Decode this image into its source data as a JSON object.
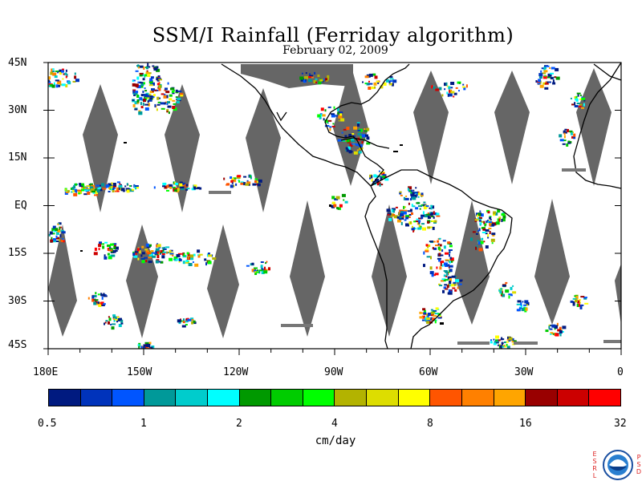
{
  "title": "SSM/I Rainfall (Ferriday algorithm)",
  "subtitle": "February 02, 2009",
  "map": {
    "lat_labels": [
      "45N",
      "30N",
      "15N",
      "EQ",
      "15S",
      "30S",
      "45S"
    ],
    "lon_labels": [
      "180E",
      "150W",
      "120W",
      "90W",
      "60W",
      "30W",
      "0"
    ],
    "lon_range": [
      -180,
      0
    ],
    "lat_range": [
      -45,
      45
    ],
    "nodata_color": "#666666",
    "land_outline_color": "#000000"
  },
  "colorbar": {
    "colors": [
      "#001a80",
      "#0033bb",
      "#0055ff",
      "#009999",
      "#00cccc",
      "#00ffff",
      "#009900",
      "#00cc00",
      "#00ff00",
      "#b3b300",
      "#dddd00",
      "#ffff00",
      "#ff5500",
      "#ff8000",
      "#ffa500",
      "#990000",
      "#cc0000",
      "#ff0000"
    ],
    "tick_labels": [
      "0.5",
      "1",
      "2",
      "4",
      "8",
      "16",
      "32"
    ],
    "units": "cm/day"
  },
  "logo": {
    "left_letters": [
      "E",
      "S",
      "R",
      "L"
    ],
    "right_letters": [
      "P",
      "S",
      "D"
    ]
  }
}
